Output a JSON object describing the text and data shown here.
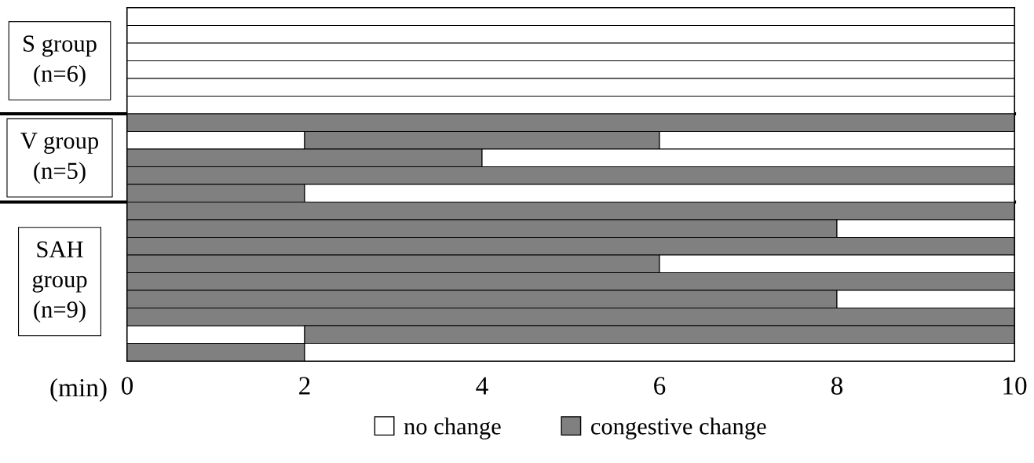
{
  "chart_data": {
    "type": "bar",
    "orientation": "horizontal",
    "stacked": true,
    "xlabel": "(min)",
    "categories": [
      null,
      null,
      null,
      null,
      null,
      null,
      null,
      null,
      null,
      null,
      null,
      null,
      null,
      null,
      null,
      null,
      null,
      null,
      null,
      null
    ],
    "series": [
      {
        "name": "no change",
        "color": "#ffffff",
        "values": [
          10,
          10,
          10,
          10,
          10,
          10,
          null,
          2,
          null,
          null,
          null,
          null,
          null,
          null,
          null,
          null,
          null,
          null,
          2,
          null
        ]
      },
      {
        "name": "congestive change",
        "color": "#808080",
        "values": [
          null,
          null,
          null,
          null,
          null,
          null,
          10,
          4,
          4,
          10,
          2,
          10,
          8,
          10,
          6,
          10,
          8,
          10,
          8,
          2
        ]
      },
      {
        "color": "#ffffff",
        "values": [
          null,
          null,
          null,
          null,
          null,
          null,
          null,
          4,
          6,
          null,
          8,
          null,
          2,
          null,
          4,
          null,
          2,
          null,
          null,
          8
        ]
      }
    ],
    "xlim": [
      0,
      10
    ],
    "xticks": [
      0,
      2,
      4,
      6,
      8,
      10
    ],
    "legend": "bottom",
    "annotations": [
      "S group\n(n=6)",
      "V group\n(n=5)",
      "SAH\ngroup\n(n=9)"
    ]
  }
}
